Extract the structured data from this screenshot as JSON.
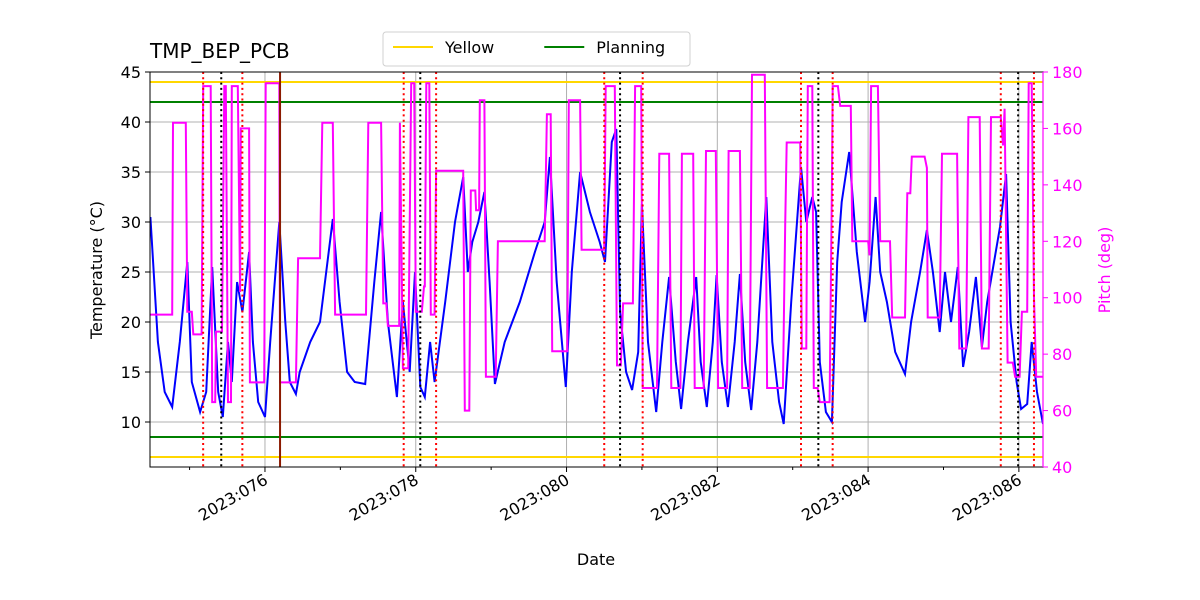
{
  "chart_data": {
    "type": "line",
    "title": "TMP_BEP_PCB",
    "xlabel": "Date",
    "ylabel": "Temperature (°C)",
    "y2label": "Pitch (deg)",
    "y2color": "magenta",
    "xlim": [
      74.475,
      86.32
    ],
    "xticks": [
      {
        "value": 76,
        "label": "2023:076"
      },
      {
        "value": 78,
        "label": "2023:078"
      },
      {
        "value": 80,
        "label": "2023:080"
      },
      {
        "value": 82,
        "label": "2023:082"
      },
      {
        "value": 84,
        "label": "2023:084"
      },
      {
        "value": 86,
        "label": "2023:086"
      }
    ],
    "xminorticks": [
      75,
      77,
      79,
      81,
      83,
      85
    ],
    "ylim": [
      5.5,
      45
    ],
    "yticks": [
      10,
      15,
      20,
      25,
      30,
      35,
      40,
      45
    ],
    "y2lim": [
      40,
      180
    ],
    "y2ticks": [
      40,
      60,
      80,
      100,
      120,
      140,
      160,
      180
    ],
    "grid": true,
    "legend": "upper center",
    "limits": [
      {
        "name": "Yellow",
        "color": "gold",
        "values": [
          44,
          6.5
        ]
      },
      {
        "name": "Planning",
        "color": "green",
        "values": [
          42,
          8.5
        ]
      }
    ],
    "vlines": [
      {
        "color": "red",
        "style": "dotted",
        "x": [
          75.18,
          75.7,
          77.84,
          78.27,
          80.5,
          81.01,
          83.11,
          83.53,
          85.76,
          86.2
        ]
      },
      {
        "color": "black",
        "style": "dotted",
        "x": [
          75.42,
          78.06,
          80.71,
          83.34,
          85.99
        ]
      },
      {
        "color": "#8b1a00",
        "style": "solid",
        "x": [
          76.2
        ]
      }
    ],
    "series": [
      {
        "color": "blue",
        "x": [
          74.48,
          74.58,
          74.67,
          74.77,
          74.87,
          74.97,
          75.03,
          75.14,
          75.22,
          75.3,
          75.38,
          75.44,
          75.51,
          75.56,
          75.63,
          75.7,
          75.79,
          75.84,
          75.91,
          76.0,
          76.07,
          76.19,
          76.27,
          76.33,
          76.41,
          76.46,
          76.6,
          76.73,
          76.9,
          76.99,
          77.09,
          77.19,
          77.33,
          77.45,
          77.54,
          77.63,
          77.75,
          77.83,
          77.92,
          77.99,
          78.06,
          78.12,
          78.19,
          78.25,
          78.39,
          78.52,
          78.63,
          78.69,
          78.75,
          78.83,
          78.91,
          78.98,
          79.05,
          79.18,
          79.38,
          79.58,
          79.71,
          79.78,
          79.87,
          79.99,
          80.07,
          80.18,
          80.31,
          80.44,
          80.51,
          80.6,
          80.66,
          80.71,
          80.79,
          80.87,
          80.95,
          81.0,
          81.08,
          81.19,
          81.27,
          81.36,
          81.45,
          81.52,
          81.61,
          81.72,
          81.78,
          81.86,
          81.94,
          81.99,
          82.06,
          82.14,
          82.23,
          82.3,
          82.37,
          82.45,
          82.53,
          82.65,
          82.73,
          82.82,
          82.88,
          82.98,
          83.11,
          83.18,
          83.26,
          83.31,
          83.36,
          83.44,
          83.52,
          83.59,
          83.65,
          83.75,
          83.85,
          83.96,
          84.02,
          84.1,
          84.16,
          84.25,
          84.36,
          84.49,
          84.57,
          84.69,
          84.78,
          84.86,
          84.95,
          85.02,
          85.1,
          85.19,
          85.26,
          85.34,
          85.43,
          85.51,
          85.58,
          85.75,
          85.83,
          85.89,
          85.97,
          86.03,
          86.11,
          86.17,
          86.24,
          86.32
        ],
        "values": [
          30.5,
          18,
          13,
          11.5,
          18,
          26,
          14,
          11,
          13,
          25.5,
          13,
          10.5,
          18,
          14,
          24,
          21,
          27,
          18,
          12,
          10.5,
          18,
          30,
          20,
          14,
          12.8,
          15,
          18,
          20,
          30.3,
          22,
          15,
          14,
          13.8,
          24,
          31,
          20,
          12.5,
          22,
          15,
          25,
          13.5,
          12.5,
          18,
          14,
          22,
          30,
          34.5,
          25,
          28,
          30,
          33,
          24,
          13.8,
          18,
          22,
          27,
          30,
          36.5,
          24,
          13.5,
          25,
          35,
          31,
          28,
          26,
          38,
          39.3,
          21,
          15,
          13.2,
          17,
          31.8,
          18,
          11,
          18,
          24.5,
          16,
          11.3,
          18,
          24.5,
          16,
          11.5,
          18,
          24.7,
          16,
          11.5,
          18,
          24.8,
          16,
          11.2,
          18,
          32.5,
          18,
          12,
          9.8,
          22,
          35.5,
          30,
          32.5,
          31,
          16,
          11,
          10,
          26,
          32,
          37,
          27,
          20,
          24,
          32.5,
          25,
          22,
          17,
          14.8,
          20,
          25,
          29.2,
          25,
          19,
          25,
          20,
          25.5,
          15.5,
          19,
          24.5,
          17.5,
          22,
          29.5,
          34.8,
          20,
          14,
          11.3,
          11.8,
          18,
          13,
          9.8
        ]
      },
      {
        "color": "magenta",
        "axis": "y2",
        "x": [
          74.48,
          74.77,
          74.78,
          74.95,
          74.97,
          75.03,
          75.05,
          75.16,
          75.18,
          75.28,
          75.3,
          75.34,
          75.35,
          75.43,
          75.46,
          75.48,
          75.51,
          75.55,
          75.56,
          75.64,
          75.67,
          75.68,
          75.79,
          75.8,
          75.99,
          76.01,
          76.19,
          76.2,
          76.41,
          76.44,
          76.73,
          76.76,
          76.9,
          76.93,
          77.34,
          77.37,
          77.54,
          77.57,
          77.61,
          77.63,
          77.78,
          77.79,
          77.83,
          77.9,
          77.94,
          77.98,
          78.0,
          78.08,
          78.11,
          78.12,
          78.14,
          78.18,
          78.2,
          78.25,
          78.27,
          78.63,
          78.65,
          78.71,
          78.73,
          78.79,
          78.8,
          78.84,
          78.85,
          78.91,
          78.93,
          79.06,
          79.09,
          79.71,
          79.74,
          79.79,
          79.81,
          80.01,
          80.03,
          80.18,
          80.2,
          80.5,
          80.52,
          80.64,
          80.67,
          80.72,
          80.75,
          80.88,
          80.91,
          80.99,
          81.01,
          81.2,
          81.23,
          81.36,
          81.39,
          81.51,
          81.53,
          81.68,
          81.7,
          81.82,
          81.85,
          81.98,
          82.01,
          82.13,
          82.15,
          82.3,
          82.33,
          82.43,
          82.46,
          82.63,
          82.66,
          82.87,
          82.9,
          82.92,
          83.1,
          83.12,
          83.18,
          83.2,
          83.26,
          83.28,
          83.33,
          83.36,
          83.49,
          83.52,
          83.53,
          83.6,
          83.63,
          83.77,
          83.79,
          84.0,
          84.02,
          84.04,
          84.13,
          84.16,
          84.29,
          84.32,
          84.49,
          84.52,
          84.56,
          84.58,
          84.75,
          84.78,
          84.79,
          84.95,
          84.98,
          85.18,
          85.21,
          85.3,
          85.33,
          85.48,
          85.51,
          85.6,
          85.63,
          85.76,
          85.79,
          85.81,
          85.85,
          85.92,
          85.95,
          86.01,
          86.04,
          86.11,
          86.13,
          86.17,
          86.2,
          86.23,
          86.32
        ],
        "values": [
          94,
          94,
          162,
          162,
          95,
          95,
          87,
          87,
          175,
          175,
          63,
          63,
          88,
          88,
          175,
          175,
          63,
          63,
          175,
          175,
          102,
          160,
          160,
          70,
          70,
          176,
          176,
          70,
          70,
          114,
          114,
          162,
          162,
          94,
          94,
          162,
          162,
          98,
          98,
          90,
          90,
          162,
          75,
          75,
          176,
          176,
          95,
          95,
          104,
          104,
          176,
          176,
          94,
          94,
          145,
          145,
          60,
          60,
          138,
          138,
          131,
          131,
          170,
          170,
          72,
          72,
          120,
          120,
          165,
          165,
          81,
          81,
          170,
          170,
          117,
          117,
          175,
          175,
          76,
          76,
          98,
          98,
          175,
          175,
          68,
          68,
          151,
          151,
          68,
          68,
          151,
          151,
          68,
          68,
          152,
          152,
          68,
          68,
          152,
          152,
          68,
          68,
          179,
          179,
          68,
          68,
          126,
          155,
          155,
          82,
          82,
          175,
          175,
          68,
          68,
          63,
          63,
          140,
          175,
          175,
          168,
          168,
          120,
          120,
          115,
          175,
          175,
          120,
          120,
          93,
          93,
          137,
          137,
          150,
          150,
          146,
          93,
          93,
          151,
          151,
          82,
          82,
          164,
          164,
          82,
          82,
          164,
          164,
          154,
          167,
          77,
          77,
          72,
          72,
          95,
          95,
          176,
          176,
          100,
          72,
          72
        ]
      }
    ]
  }
}
